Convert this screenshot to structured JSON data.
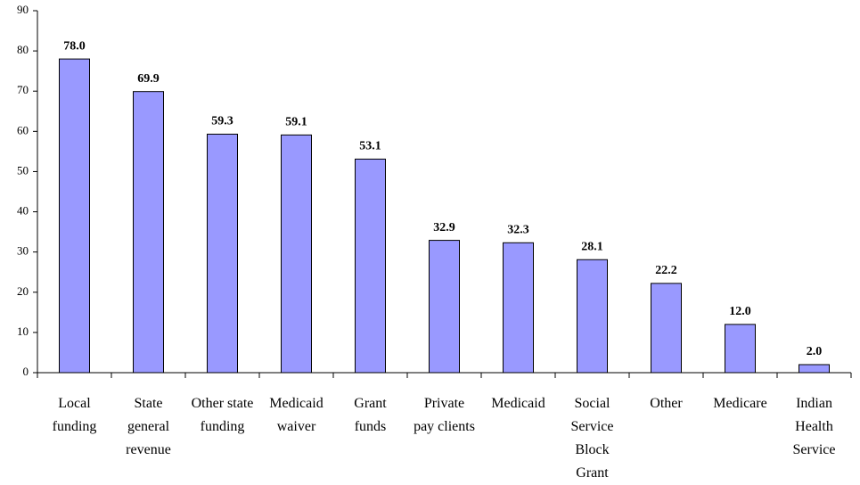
{
  "chart_data": {
    "type": "bar",
    "categories": [
      "Local funding",
      "State general revenue",
      "Other state funding",
      "Medicaid waiver",
      "Grant funds",
      "Private pay clients",
      "Medicaid",
      "Social Service Block Grant",
      "Other",
      "Medicare",
      "Indian Health Service"
    ],
    "values": [
      78.0,
      69.9,
      59.3,
      59.1,
      53.1,
      32.9,
      32.3,
      28.1,
      22.2,
      12.0,
      2.0
    ],
    "value_labels": [
      "78.0",
      "69.9",
      "59.3",
      "59.1",
      "53.1",
      "32.9",
      "32.3",
      "28.1",
      "22.2",
      "12.0",
      "2.0"
    ],
    "color": "#9999ff",
    "ylim": [
      0,
      90
    ],
    "yticks": [
      0,
      10,
      20,
      30,
      40,
      50,
      60,
      70,
      80,
      90
    ],
    "grid": false
  }
}
